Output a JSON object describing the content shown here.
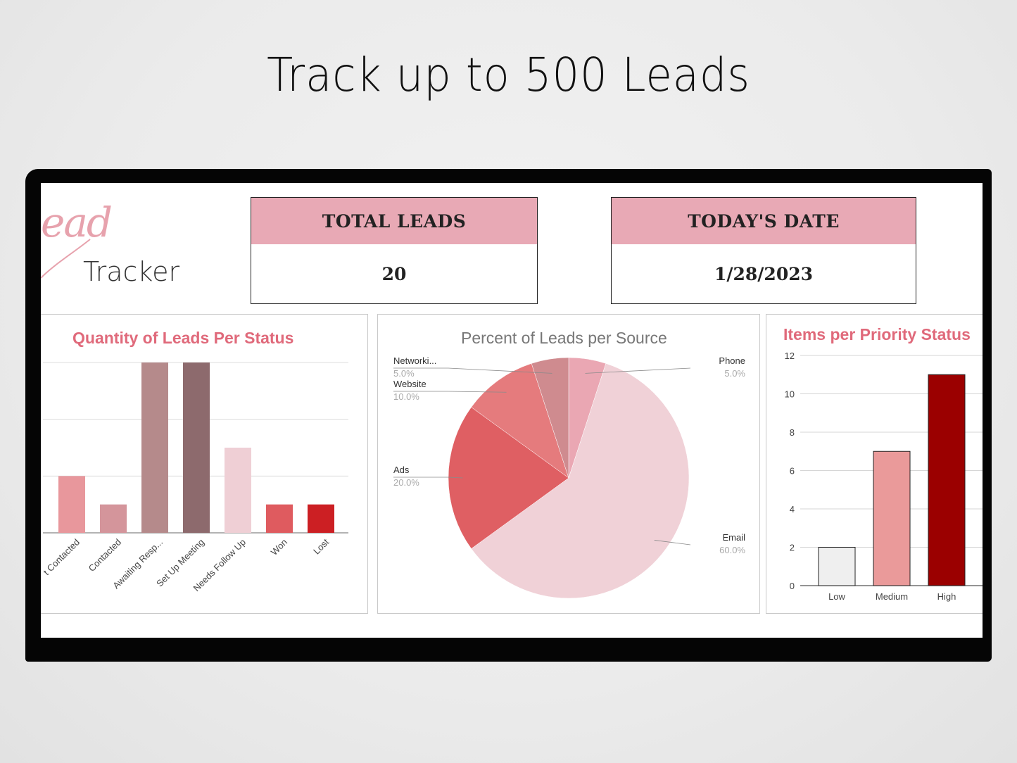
{
  "headline": "Track up to 500 Leads",
  "logo": {
    "script": "ead",
    "word": "Tracker"
  },
  "stats": {
    "total_leads_label": "TOTAL LEADS",
    "total_leads_value": "20",
    "todays_date_label": "TODAY'S DATE",
    "todays_date_value": "1/28/2023"
  },
  "colors": {
    "header_pink": "#e8a9b5",
    "title_red": "#e06a7b",
    "monitor_frame": "#050505"
  },
  "chart_data": [
    {
      "type": "bar",
      "title": "Quantity of Leads Per Status",
      "categories": [
        "Not Contacted",
        "Contacted",
        "Awaiting Resp...",
        "Set Up Meeting",
        "Needs Follow Up",
        "Won",
        "Lost"
      ],
      "visible_category_labels": [
        "t Contacted",
        "Contacted",
        "Awaiting Resp...",
        "Set Up Meeting",
        "Needs Follow Up",
        "Won",
        "Lost"
      ],
      "values": [
        2,
        1,
        6,
        6,
        3,
        1,
        1
      ],
      "ylim": [
        0,
        6
      ],
      "grid": true,
      "colors": [
        "#e8979c",
        "#d4959b",
        "#b58a8b",
        "#8d6a6d",
        "#efcfd5",
        "#df5b5f",
        "#cc1f23"
      ]
    },
    {
      "type": "pie",
      "title": "Percent of Leads per Source",
      "slices": [
        {
          "label": "Phone",
          "display_label": "Phone",
          "pct_label": "5.0%",
          "value": 5.0,
          "color": "#eaa7b3"
        },
        {
          "label": "Email",
          "display_label": "Email",
          "pct_label": "60.0%",
          "value": 60.0,
          "color": "#f0d1d7"
        },
        {
          "label": "Ads",
          "display_label": "Ads",
          "pct_label": "20.0%",
          "value": 20.0,
          "color": "#df5f63"
        },
        {
          "label": "Website",
          "display_label": "Website",
          "pct_label": "10.0%",
          "value": 10.0,
          "color": "#e57b7d"
        },
        {
          "label": "Networking",
          "display_label": "Networki...",
          "pct_label": "5.0%",
          "value": 5.0,
          "color": "#cf8b8f"
        }
      ]
    },
    {
      "type": "bar",
      "title": "Items per Priority Status",
      "categories": [
        "Low",
        "Medium",
        "High"
      ],
      "values": [
        2,
        7,
        11
      ],
      "ylim": [
        0,
        12
      ],
      "yticks": [
        "0",
        "2",
        "4",
        "6",
        "8",
        "10",
        "12"
      ],
      "grid": true,
      "colors": [
        "#efefef",
        "#ea9a9a",
        "#9b0000"
      ]
    }
  ]
}
